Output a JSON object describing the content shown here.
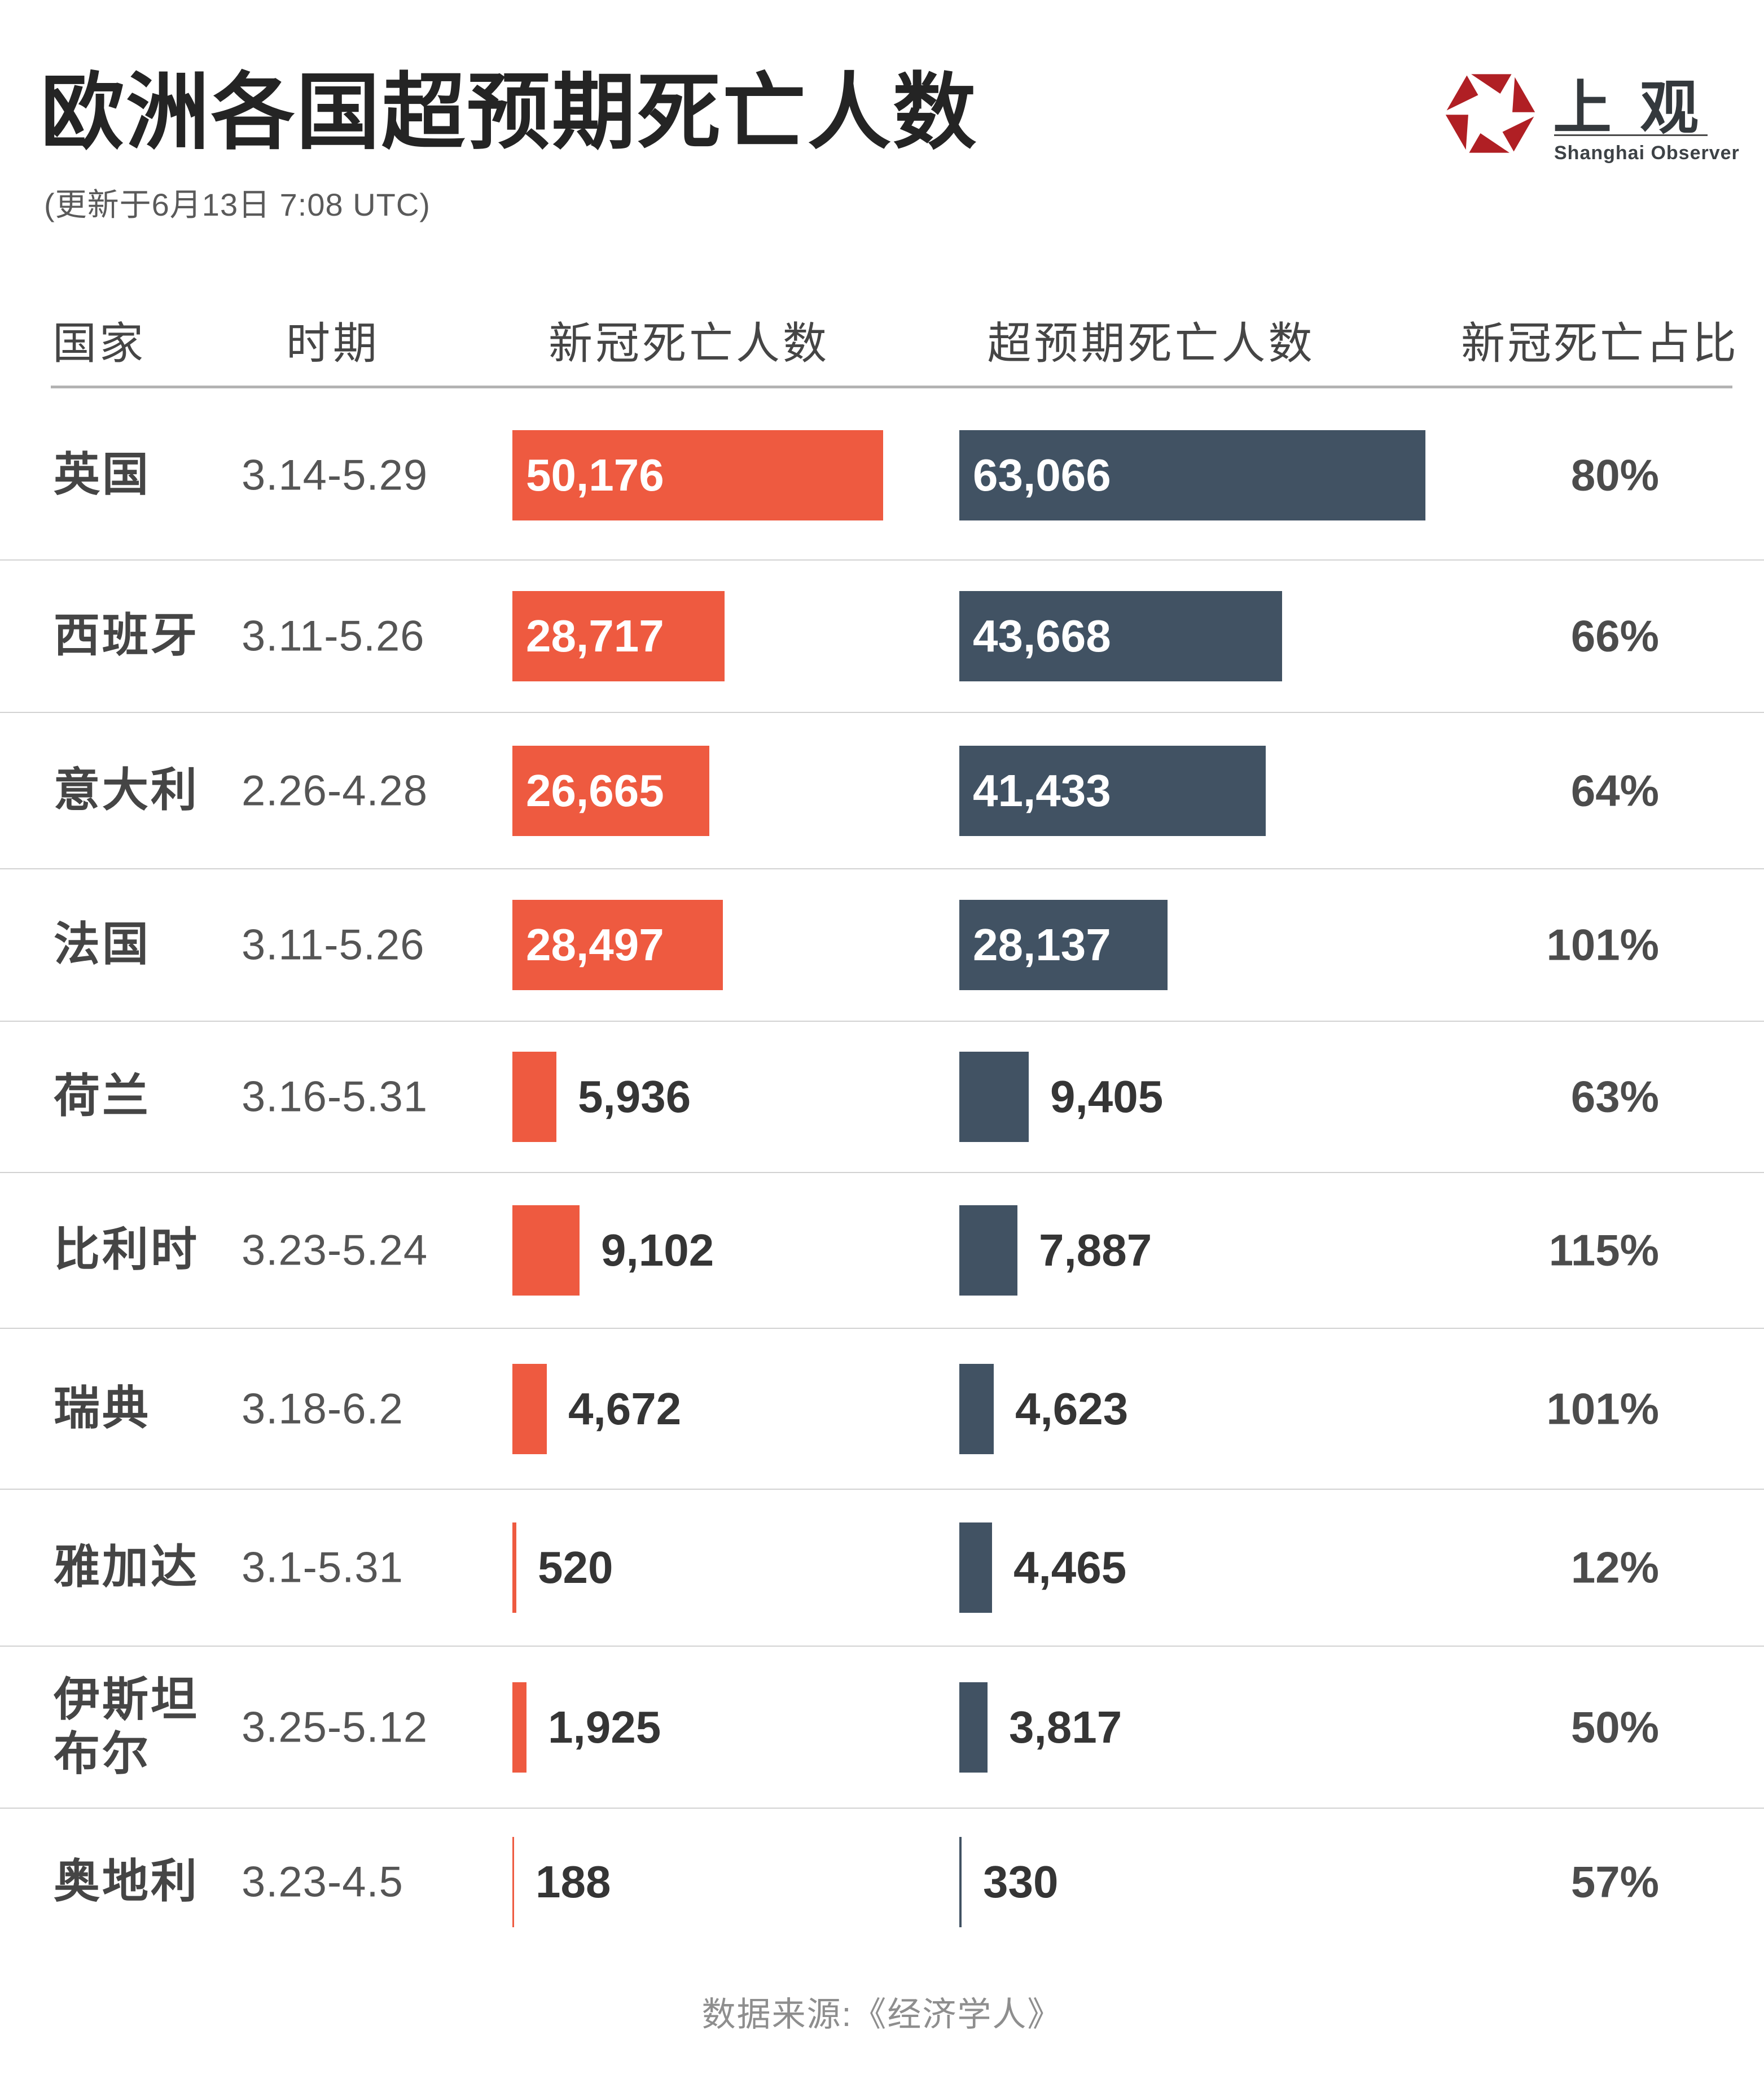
{
  "title": "欧洲各国超预期死亡人数",
  "subtitle": "(更新于6月13日 7:08 UTC)",
  "logo": {
    "cn_name": "上观",
    "en_name": "Shanghai Observer",
    "icon": "aperture-hexagon-icon",
    "red": "#b01f24"
  },
  "columns": {
    "country": "国家",
    "period": "时期",
    "covid_deaths": "新冠死亡人数",
    "excess_deaths": "超预期死亡人数",
    "covid_ratio": "新冠死亡占比"
  },
  "colors": {
    "covid_bar": "#ee5a40",
    "excess_bar": "#415263"
  },
  "rows": [
    {
      "country": "英国",
      "period": "3.14-5.29",
      "covid_label": "50,176",
      "covid": 50176,
      "excess_label": "63,066",
      "excess": 63066,
      "ratio": "80%"
    },
    {
      "country": "西班牙",
      "period": "3.11-5.26",
      "covid_label": "28,717",
      "covid": 28717,
      "excess_label": "43,668",
      "excess": 43668,
      "ratio": "66%"
    },
    {
      "country": "意大利",
      "period": "2.26-4.28",
      "covid_label": "26,665",
      "covid": 26665,
      "excess_label": "41,433",
      "excess": 41433,
      "ratio": "64%"
    },
    {
      "country": "法国",
      "period": "3.11-5.26",
      "covid_label": "28,497",
      "covid": 28497,
      "excess_label": "28,137",
      "excess": 28137,
      "ratio": "101%"
    },
    {
      "country": "荷兰",
      "period": "3.16-5.31",
      "covid_label": "5,936",
      "covid": 5936,
      "excess_label": "9,405",
      "excess": 9405,
      "ratio": "63%"
    },
    {
      "country": "比利时",
      "period": "3.23-5.24",
      "covid_label": "9,102",
      "covid": 9102,
      "excess_label": "7,887",
      "excess": 7887,
      "ratio": "115%"
    },
    {
      "country": "瑞典",
      "period": "3.18-6.2",
      "covid_label": "4,672",
      "covid": 4672,
      "excess_label": "4,623",
      "excess": 4623,
      "ratio": "101%"
    },
    {
      "country": "雅加达",
      "period": "3.1-5.31",
      "covid_label": "520",
      "covid": 520,
      "excess_label": "4,465",
      "excess": 4465,
      "ratio": "12%"
    },
    {
      "country": "伊斯坦\n布尔",
      "period": "3.25-5.12",
      "covid_label": "1,925",
      "covid": 1925,
      "excess_label": "3,817",
      "excess": 3817,
      "ratio": "50%"
    },
    {
      "country": "奥地利",
      "period": "3.23-4.5",
      "covid_label": "188",
      "covid": 188,
      "excess_label": "330",
      "excess": 330,
      "ratio": "57%"
    }
  ],
  "chart_data": {
    "type": "bar",
    "orientation": "horizontal",
    "title": "欧洲各国超预期死亡人数",
    "subtitle": "(更新于6月13日 7:08 UTC)",
    "categories": [
      "英国",
      "西班牙",
      "意大利",
      "法国",
      "荷兰",
      "比利时",
      "瑞典",
      "雅加达",
      "伊斯坦布尔",
      "奥地利"
    ],
    "periods": [
      "3.14-5.29",
      "3.11-5.26",
      "2.26-4.28",
      "3.11-5.26",
      "3.16-5.31",
      "3.23-5.24",
      "3.18-6.2",
      "3.1-5.31",
      "3.25-5.12",
      "3.23-4.5"
    ],
    "series": [
      {
        "name": "新冠死亡人数",
        "color": "#ee5a40",
        "values": [
          50176,
          28717,
          26665,
          28497,
          5936,
          9102,
          4672,
          520,
          1925,
          188
        ]
      },
      {
        "name": "超预期死亡人数",
        "color": "#415263",
        "values": [
          63066,
          43668,
          41433,
          28137,
          9405,
          7887,
          4623,
          4465,
          3817,
          330
        ]
      }
    ],
    "ratio_column": {
      "name": "新冠死亡占比",
      "values": [
        "80%",
        "66%",
        "64%",
        "101%",
        "63%",
        "115%",
        "101%",
        "12%",
        "50%",
        "57%"
      ]
    },
    "xlim": [
      0,
      63066
    ],
    "grid": false,
    "legend": false,
    "source": "数据来源:《经济学人》"
  },
  "footer": "数据来源:《经济学人》"
}
